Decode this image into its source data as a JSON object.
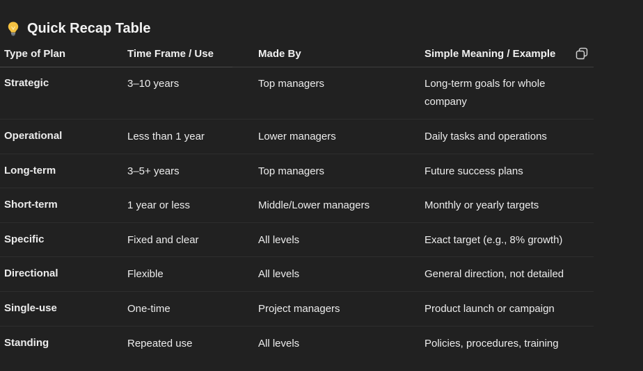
{
  "heading": {
    "title": "Quick Recap Table",
    "icon": "lightbulb-icon"
  },
  "table": {
    "columns": [
      "Type of Plan",
      "Time Frame / Use",
      "Made By",
      "Simple Meaning / Example"
    ],
    "copy_icon": "copy-icon",
    "rows": [
      [
        "Strategic",
        "3–10 years",
        "Top managers",
        "Long-term goals for whole company"
      ],
      [
        "Operational",
        "Less than 1 year",
        "Lower managers",
        "Daily tasks and operations"
      ],
      [
        "Long-term",
        "3–5+ years",
        "Top managers",
        "Future success plans"
      ],
      [
        "Short-term",
        "1 year or less",
        "Middle/Lower managers",
        "Monthly or yearly targets"
      ],
      [
        "Specific",
        "Fixed and clear",
        "All levels",
        "Exact target (e.g., 8% growth)"
      ],
      [
        "Directional",
        "Flexible",
        "All levels",
        "General direction, not detailed"
      ],
      [
        "Single-use",
        "One-time",
        "Project managers",
        "Product launch or campaign"
      ],
      [
        "Standing",
        "Repeated use",
        "All levels",
        "Policies, procedures, training"
      ]
    ]
  },
  "colors": {
    "background": "#212121",
    "text": "#ececec",
    "bulb": "#f5c242"
  }
}
